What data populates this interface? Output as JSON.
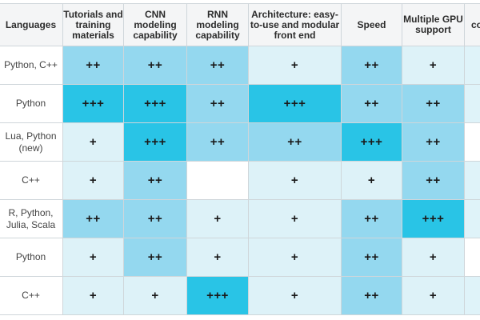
{
  "headers": [
    "Languages",
    "Tutorials and training materials",
    "CNN modeling capability",
    "RNN modeling capability",
    "Architecture: easy-to-use and modular front end",
    "Speed",
    "Multiple GPU support",
    "co"
  ],
  "rows": [
    {
      "language": "Python, C++",
      "ratings": [
        "++",
        "++",
        "++",
        "+",
        "++",
        "+"
      ]
    },
    {
      "language": "Python",
      "ratings": [
        "+++",
        "+++",
        "++",
        "+++",
        "++",
        "++"
      ]
    },
    {
      "language": "Lua, Python (new)",
      "ratings": [
        "+",
        "+++",
        "++",
        "++",
        "+++",
        "++"
      ]
    },
    {
      "language": "C++",
      "ratings": [
        "+",
        "++",
        "",
        "+",
        "+",
        "++"
      ]
    },
    {
      "language": "R, Python, Julia, Scala",
      "ratings": [
        "++",
        "++",
        "+",
        "+",
        "++",
        "+++"
      ]
    },
    {
      "language": "Python",
      "ratings": [
        "+",
        "++",
        "+",
        "+",
        "++",
        "+"
      ]
    },
    {
      "language": "C++",
      "ratings": [
        "+",
        "+",
        "+++",
        "+",
        "++",
        "+"
      ]
    }
  ],
  "colors": {
    "none": "#ffffff",
    "one_plus": "#ddf2f8",
    "two_plus": "#94d8ef",
    "three_plus": "#29c4e6",
    "border": "#cfd6da"
  }
}
